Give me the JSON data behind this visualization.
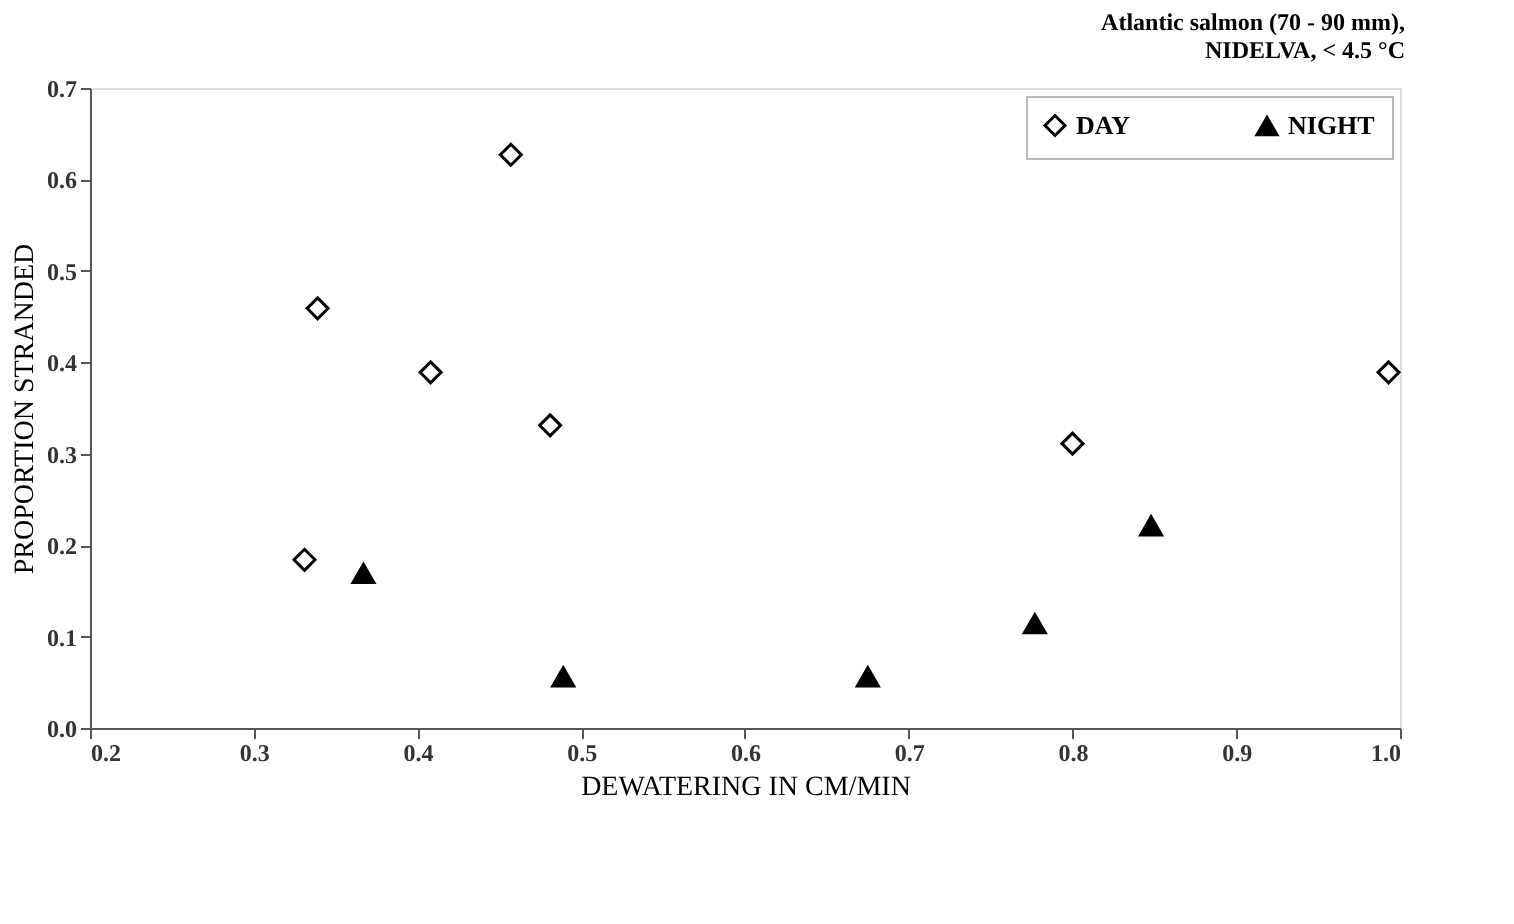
{
  "chart_data": {
    "type": "scatter",
    "title": [
      "Atlantic salmon (70 - 90 mm),",
      "NIDELVA,   < 4.5 °C"
    ],
    "xlabel": "DEWATERING IN CM/MIN",
    "ylabel": "PROPORTION STRANDED",
    "series": [
      {
        "name": "DAY",
        "color": "#000000",
        "marker": "diamond",
        "x": [
          0.331,
          0.339,
          0.408,
          0.457,
          0.481,
          0.8,
          0.993
        ],
        "values": [
          0.184,
          0.459,
          0.389,
          0.627,
          0.331,
          0.311,
          0.389
        ]
      },
      {
        "name": "NIGHT",
        "color": "#000000",
        "marker": "triangle",
        "x": [
          0.367,
          0.489,
          0.675,
          0.777,
          0.848
        ],
        "values": [
          0.169,
          0.056,
          0.056,
          0.114,
          0.221
        ]
      }
    ],
    "xlim": [
      0.2,
      1.0
    ],
    "xticks": [
      0.2,
      0.3,
      0.4,
      0.5,
      0.6,
      0.7,
      0.8,
      0.9,
      {
        "value": 1,
        "label": "1.0"
      }
    ],
    "ylim": [
      0.0,
      0.7
    ],
    "yticks": [
      {
        "value": 0,
        "label": "0.0"
      },
      0.1,
      0.2,
      0.3,
      0.4,
      0.5,
      0.6,
      0.7
    ],
    "grid": false,
    "legend": "top right"
  }
}
